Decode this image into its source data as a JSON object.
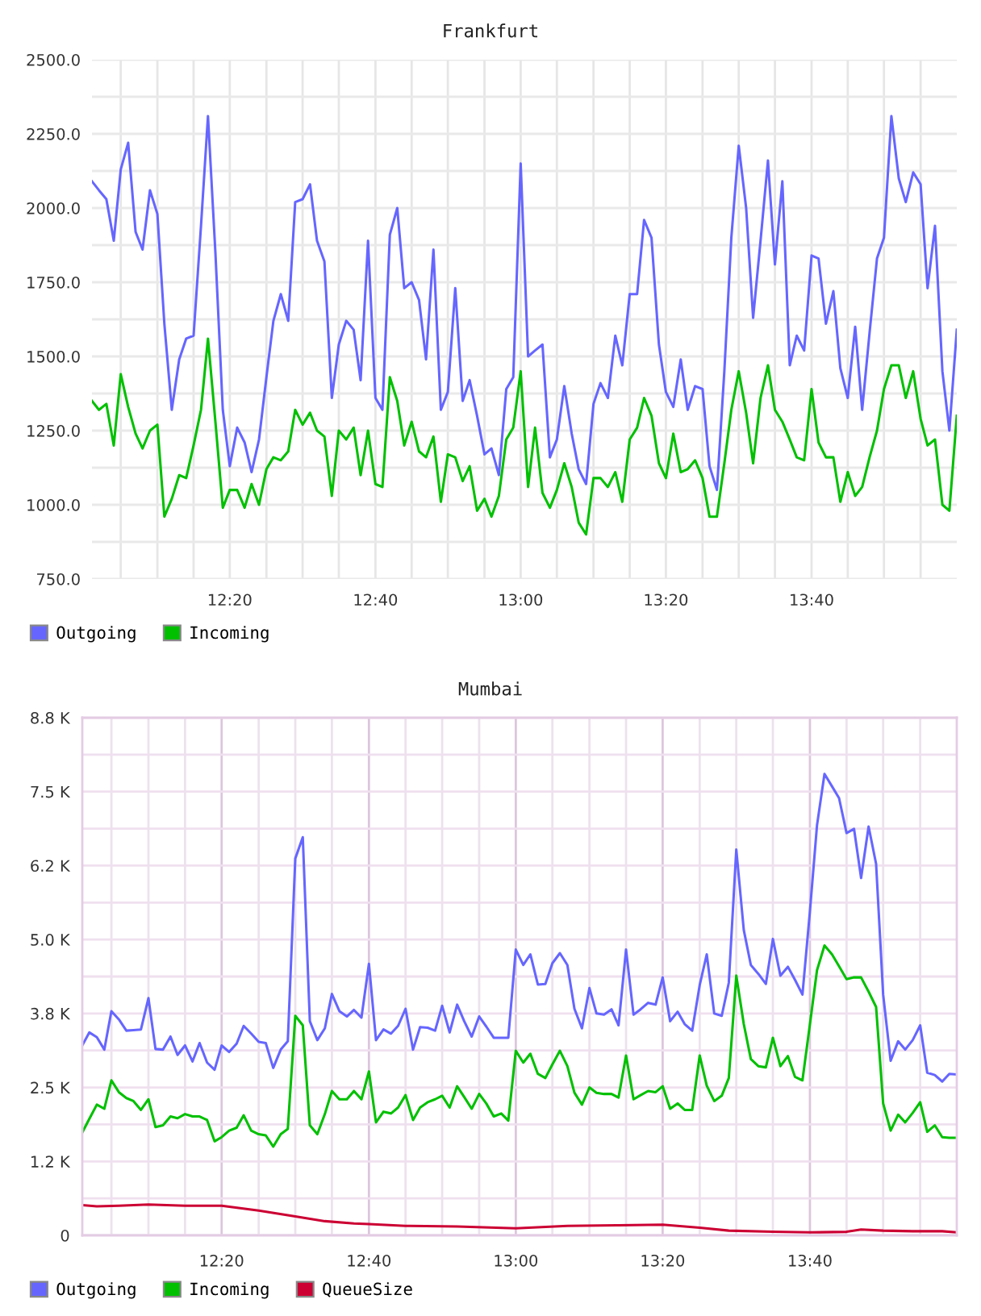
{
  "chart_data": [
    {
      "type": "line",
      "title": "Frankfurt",
      "x": [
        12.017,
        12.033,
        12.05,
        12.067,
        12.083,
        12.1,
        12.117,
        12.133,
        12.15,
        12.167,
        12.183,
        12.2,
        12.217,
        12.233,
        12.25,
        12.267,
        12.283,
        12.3,
        12.317,
        12.333,
        12.35,
        12.367,
        12.383,
        12.4,
        12.417,
        12.433,
        12.45,
        12.467,
        12.483,
        12.5,
        12.517,
        12.533,
        12.55,
        12.567,
        12.583,
        12.6,
        12.617,
        12.633,
        12.65,
        12.667,
        12.683,
        12.7,
        12.717,
        12.733,
        12.75,
        12.767,
        12.783,
        12.8,
        12.817,
        12.833,
        12.85,
        12.867,
        12.883,
        12.9,
        12.917,
        12.933,
        12.95,
        12.967,
        12.983,
        13,
        13.017,
        13.033,
        13.05,
        13.067,
        13.083,
        13.1,
        13.117,
        13.133,
        13.15,
        13.167,
        13.183,
        13.2,
        13.217,
        13.233,
        13.25,
        13.267,
        13.283,
        13.3,
        13.317,
        13.333,
        13.35,
        13.367,
        13.383,
        13.4,
        13.417,
        13.433,
        13.45,
        13.467,
        13.483,
        13.5,
        13.517,
        13.533,
        13.55,
        13.567,
        13.583,
        13.6,
        13.617,
        13.633,
        13.65,
        13.667,
        13.683,
        13.7,
        13.717,
        13.733,
        13.75,
        13.767,
        13.783,
        13.8,
        13.817,
        13.833,
        13.85,
        13.867,
        13.883,
        13.9,
        13.917,
        13.933,
        13.95,
        13.967,
        13.983,
        14
      ],
      "xlim": [
        12.017,
        14
      ],
      "xticks": [
        {
          "value": 12.083,
          "label": null
        },
        {
          "value": 12.167,
          "label": null
        },
        {
          "value": 12.25,
          "label": null
        },
        {
          "value": 12.333,
          "label": "12:20"
        },
        {
          "value": 12.417,
          "label": null
        },
        {
          "value": 12.5,
          "label": null
        },
        {
          "value": 12.583,
          "label": null
        },
        {
          "value": 12.667,
          "label": "12:40"
        },
        {
          "value": 12.75,
          "label": null
        },
        {
          "value": 12.833,
          "label": null
        },
        {
          "value": 12.917,
          "label": null
        },
        {
          "value": 13,
          "label": "13:00"
        },
        {
          "value": 13.083,
          "label": null
        },
        {
          "value": 13.167,
          "label": null
        },
        {
          "value": 13.25,
          "label": null
        },
        {
          "value": 13.333,
          "label": "13:20"
        },
        {
          "value": 13.417,
          "label": null
        },
        {
          "value": 13.5,
          "label": null
        },
        {
          "value": 13.583,
          "label": null
        },
        {
          "value": 13.667,
          "label": "13:40"
        },
        {
          "value": 13.75,
          "label": null
        },
        {
          "value": 13.833,
          "label": null
        },
        {
          "value": 13.917,
          "label": null
        }
      ],
      "ylim": [
        750,
        2500
      ],
      "yticks": [
        {
          "value": 750,
          "label": "750.0"
        },
        {
          "value": 875,
          "label": null
        },
        {
          "value": 1000,
          "label": "1000.0"
        },
        {
          "value": 1125,
          "label": null
        },
        {
          "value": 1250,
          "label": "1250.0"
        },
        {
          "value": 1375,
          "label": null
        },
        {
          "value": 1500,
          "label": "1500.0"
        },
        {
          "value": 1625,
          "label": null
        },
        {
          "value": 1750,
          "label": "1750.0"
        },
        {
          "value": 1875,
          "label": null
        },
        {
          "value": 2000,
          "label": "2000.0"
        },
        {
          "value": 2125,
          "label": null
        },
        {
          "value": 2250,
          "label": "2250.0"
        },
        {
          "value": 2375,
          "label": null
        },
        {
          "value": 2500,
          "label": "2500.0"
        }
      ],
      "grid": true,
      "legend": "bottom left",
      "series": [
        {
          "name": "Outgoing",
          "color": "#6666ff",
          "values": [
            2090,
            2060,
            2030,
            1890,
            2130,
            2220,
            1920,
            1860,
            2060,
            1980,
            1610,
            1320,
            1490,
            1560,
            1570,
            1940,
            2310,
            1850,
            1320,
            1130,
            1260,
            1210,
            1110,
            1220,
            1430,
            1620,
            1710,
            1620,
            2020,
            2030,
            2080,
            1890,
            1820,
            1360,
            1540,
            1620,
            1590,
            1420,
            1890,
            1360,
            1320,
            1910,
            2000,
            1730,
            1750,
            1690,
            1490,
            1860,
            1320,
            1380,
            1730,
            1350,
            1420,
            1300,
            1170,
            1190,
            1100,
            1390,
            1430,
            2150,
            1500,
            1520,
            1540,
            1160,
            1220,
            1400,
            1240,
            1120,
            1070,
            1340,
            1410,
            1360,
            1570,
            1470,
            1710,
            1710,
            1960,
            1900,
            1540,
            1380,
            1330,
            1490,
            1320,
            1400,
            1390,
            1130,
            1050,
            1450,
            1900,
            2210,
            2000,
            1630,
            1890,
            2160,
            1810,
            2090,
            1470,
            1570,
            1520,
            1840,
            1830,
            1610,
            1720,
            1460,
            1360,
            1600,
            1320,
            1580,
            1830,
            1900,
            2310,
            2100,
            2020,
            2120,
            2080,
            1730,
            1940,
            1450,
            1250,
            1590
          ]
        },
        {
          "name": "Incoming",
          "color": "#00c000",
          "values": [
            1350,
            1320,
            1340,
            1200,
            1440,
            1330,
            1240,
            1190,
            1250,
            1270,
            960,
            1020,
            1100,
            1090,
            1200,
            1320,
            1560,
            1280,
            990,
            1050,
            1050,
            990,
            1070,
            1000,
            1120,
            1160,
            1150,
            1180,
            1320,
            1270,
            1310,
            1250,
            1230,
            1030,
            1250,
            1220,
            1260,
            1100,
            1250,
            1070,
            1060,
            1430,
            1350,
            1200,
            1280,
            1180,
            1160,
            1230,
            1010,
            1170,
            1160,
            1080,
            1130,
            980,
            1020,
            960,
            1030,
            1220,
            1260,
            1450,
            1060,
            1260,
            1040,
            990,
            1050,
            1140,
            1060,
            940,
            900,
            1090,
            1090,
            1060,
            1110,
            1010,
            1220,
            1260,
            1360,
            1300,
            1140,
            1090,
            1240,
            1110,
            1120,
            1150,
            1090,
            960,
            960,
            1140,
            1320,
            1450,
            1310,
            1140,
            1360,
            1470,
            1320,
            1280,
            1220,
            1160,
            1150,
            1390,
            1210,
            1160,
            1160,
            1010,
            1110,
            1030,
            1060,
            1160,
            1250,
            1390,
            1470,
            1470,
            1360,
            1450,
            1290,
            1200,
            1220,
            1000,
            980,
            1300
          ]
        }
      ]
    },
    {
      "type": "line",
      "title": "Mumbai",
      "x": [
        12.017,
        12.033,
        12.05,
        12.067,
        12.083,
        12.1,
        12.117,
        12.133,
        12.15,
        12.167,
        12.183,
        12.2,
        12.217,
        12.233,
        12.25,
        12.267,
        12.283,
        12.3,
        12.317,
        12.333,
        12.35,
        12.367,
        12.383,
        12.4,
        12.417,
        12.433,
        12.45,
        12.467,
        12.483,
        12.5,
        12.517,
        12.533,
        12.55,
        12.567,
        12.583,
        12.6,
        12.617,
        12.633,
        12.65,
        12.667,
        12.683,
        12.7,
        12.717,
        12.733,
        12.75,
        12.767,
        12.783,
        12.8,
        12.817,
        12.833,
        12.85,
        12.867,
        12.883,
        12.9,
        12.917,
        12.933,
        12.95,
        12.967,
        12.983,
        13,
        13.017,
        13.033,
        13.05,
        13.067,
        13.083,
        13.1,
        13.117,
        13.133,
        13.15,
        13.167,
        13.183,
        13.2,
        13.217,
        13.233,
        13.25,
        13.267,
        13.283,
        13.3,
        13.317,
        13.333,
        13.35,
        13.367,
        13.383,
        13.4,
        13.417,
        13.433,
        13.45,
        13.467,
        13.483,
        13.5,
        13.517,
        13.533,
        13.55,
        13.567,
        13.583,
        13.6,
        13.617,
        13.633,
        13.65,
        13.667,
        13.683,
        13.7,
        13.717,
        13.733,
        13.75,
        13.767,
        13.783,
        13.8,
        13.817,
        13.833,
        13.85,
        13.867,
        13.883,
        13.9,
        13.917,
        13.933,
        13.95,
        13.967,
        13.983,
        14
      ],
      "xlim": [
        12.017,
        14
      ],
      "xticks": [
        {
          "value": 12.083,
          "label": null
        },
        {
          "value": 12.167,
          "label": null
        },
        {
          "value": 12.25,
          "label": null
        },
        {
          "value": 12.333,
          "label": "12:20"
        },
        {
          "value": 12.417,
          "label": null
        },
        {
          "value": 12.5,
          "label": null
        },
        {
          "value": 12.583,
          "label": null
        },
        {
          "value": 12.667,
          "label": "12:40"
        },
        {
          "value": 12.75,
          "label": null
        },
        {
          "value": 12.833,
          "label": null
        },
        {
          "value": 12.917,
          "label": null
        },
        {
          "value": 13,
          "label": "13:00"
        },
        {
          "value": 13.083,
          "label": null
        },
        {
          "value": 13.167,
          "label": null
        },
        {
          "value": 13.25,
          "label": null
        },
        {
          "value": 13.333,
          "label": "13:20"
        },
        {
          "value": 13.417,
          "label": null
        },
        {
          "value": 13.5,
          "label": null
        },
        {
          "value": 13.583,
          "label": null
        },
        {
          "value": 13.667,
          "label": "13:40"
        },
        {
          "value": 13.75,
          "label": null
        },
        {
          "value": 13.833,
          "label": null
        },
        {
          "value": 13.917,
          "label": null
        }
      ],
      "ylim": [
        0,
        8750
      ],
      "yticks": [
        0,
        {
          "value": 625,
          "label": null
        },
        {
          "value": 1250,
          "label": "1.2 K"
        },
        {
          "value": 1875,
          "label": null
        },
        {
          "value": 2500,
          "label": "2.5 K"
        },
        {
          "value": 3125,
          "label": null
        },
        {
          "value": 3750,
          "label": "3.8 K"
        },
        {
          "value": 4375,
          "label": null
        },
        {
          "value": 5000,
          "label": "5.0 K"
        },
        {
          "value": 5625,
          "label": null
        },
        {
          "value": 6250,
          "label": "6.2 K"
        },
        {
          "value": 6875,
          "label": null
        },
        {
          "value": 7500,
          "label": "7.5 K"
        },
        {
          "value": 8125,
          "label": null
        },
        {
          "value": 8750,
          "label": "8.8 K"
        }
      ],
      "grid": true,
      "legend": "bottom left",
      "series": [
        {
          "name": "Outgoing",
          "color": "#6666ff",
          "values": [
            3210,
            3430,
            3350,
            3140,
            3790,
            3650,
            3460,
            3470,
            3480,
            4010,
            3150,
            3140,
            3360,
            3050,
            3210,
            2940,
            3250,
            2920,
            2800,
            3210,
            3100,
            3240,
            3540,
            3410,
            3270,
            3250,
            2830,
            3140,
            3280,
            6370,
            6730,
            3620,
            3300,
            3500,
            4080,
            3790,
            3700,
            3810,
            3680,
            4590,
            3300,
            3480,
            3410,
            3540,
            3830,
            3140,
            3520,
            3510,
            3460,
            3880,
            3430,
            3900,
            3620,
            3360,
            3700,
            3530,
            3340,
            3340,
            3340,
            4830,
            4570,
            4750,
            4240,
            4250,
            4600,
            4770,
            4570,
            3830,
            3500,
            4180,
            3750,
            3730,
            3820,
            3550,
            4830,
            3730,
            3820,
            3930,
            3900,
            4360,
            3620,
            3780,
            3570,
            3460,
            4230,
            4750,
            3750,
            3710,
            4270,
            6520,
            5160,
            4570,
            4420,
            4250,
            5010,
            4390,
            4540,
            4320,
            4070,
            5480,
            6930,
            7800,
            7590,
            7390,
            6800,
            6870,
            6040,
            6910,
            6280,
            4070,
            2950,
            3280,
            3140,
            3300,
            3550,
            2750,
            2710,
            2600,
            2730,
            2720
          ]
        },
        {
          "name": "Incoming",
          "color": "#00c000",
          "values": [
            1740,
            1970,
            2210,
            2140,
            2620,
            2420,
            2320,
            2270,
            2120,
            2300,
            1830,
            1860,
            2010,
            1980,
            2050,
            2010,
            2010,
            1950,
            1590,
            1660,
            1770,
            1820,
            2030,
            1770,
            1710,
            1690,
            1500,
            1710,
            1800,
            3710,
            3550,
            1860,
            1710,
            2050,
            2440,
            2300,
            2300,
            2440,
            2300,
            2770,
            1910,
            2090,
            2060,
            2160,
            2370,
            1950,
            2160,
            2250,
            2300,
            2360,
            2160,
            2520,
            2340,
            2140,
            2390,
            2230,
            2010,
            2060,
            1940,
            3120,
            2920,
            3070,
            2730,
            2660,
            2890,
            3120,
            2860,
            2410,
            2210,
            2500,
            2410,
            2390,
            2390,
            2330,
            3040,
            2300,
            2370,
            2440,
            2420,
            2520,
            2140,
            2230,
            2120,
            2120,
            3040,
            2530,
            2270,
            2360,
            2660,
            4390,
            3570,
            2980,
            2860,
            2840,
            3340,
            2860,
            3030,
            2680,
            2620,
            3570,
            4480,
            4900,
            4750,
            4550,
            4330,
            4360,
            4360,
            4120,
            3860,
            2230,
            1770,
            2040,
            1910,
            2070,
            2250,
            1750,
            1860,
            1660,
            1650,
            1650
          ]
        },
        {
          "name": "QueueSize",
          "color": "#cc0033",
          "x": [
            12.017,
            12.05,
            12.1,
            12.167,
            12.25,
            12.333,
            12.417,
            12.5,
            12.567,
            12.633,
            12.667,
            12.75,
            12.867,
            13,
            13.117,
            13.233,
            13.333,
            13.417,
            13.483,
            13.583,
            13.667,
            13.75,
            13.783,
            13.833,
            13.9,
            13.967,
            14
          ],
          "values": [
            510,
            490,
            500,
            520,
            500,
            500,
            420,
            320,
            240,
            200,
            190,
            160,
            150,
            120,
            160,
            170,
            180,
            130,
            80,
            60,
            50,
            60,
            100,
            80,
            70,
            70,
            50
          ]
        }
      ]
    }
  ]
}
